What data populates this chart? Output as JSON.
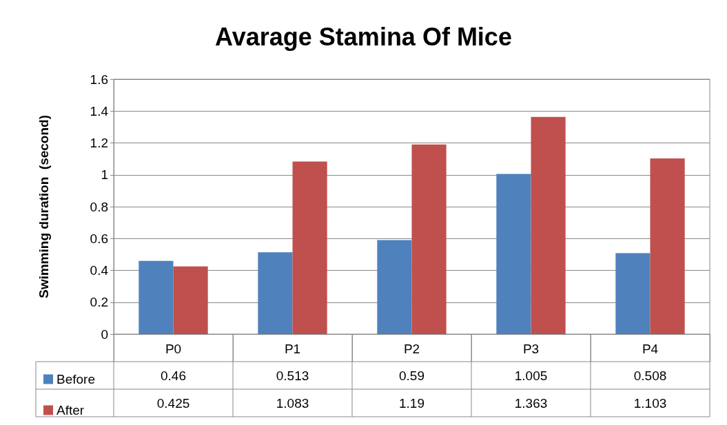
{
  "chart_data": {
    "type": "bar",
    "title": "Avarage Stamina Of Mice",
    "ylabel": "Swimming duration  (second)",
    "categories": [
      "P0",
      "P1",
      "P2",
      "P3",
      "P4"
    ],
    "series": [
      {
        "name": "Before",
        "color": "#4f81bd",
        "values": [
          0.46,
          0.513,
          0.59,
          1.005,
          0.508
        ]
      },
      {
        "name": "After",
        "color": "#c0504d",
        "values": [
          0.425,
          1.083,
          1.19,
          1.363,
          1.103
        ]
      }
    ],
    "ylim": [
      0,
      1.6
    ],
    "yticks": [
      0,
      0.2,
      0.4,
      0.6,
      0.8,
      1,
      1.2,
      1.4,
      1.6
    ],
    "grid": "y",
    "legend": "bottom",
    "data_labels": true
  }
}
